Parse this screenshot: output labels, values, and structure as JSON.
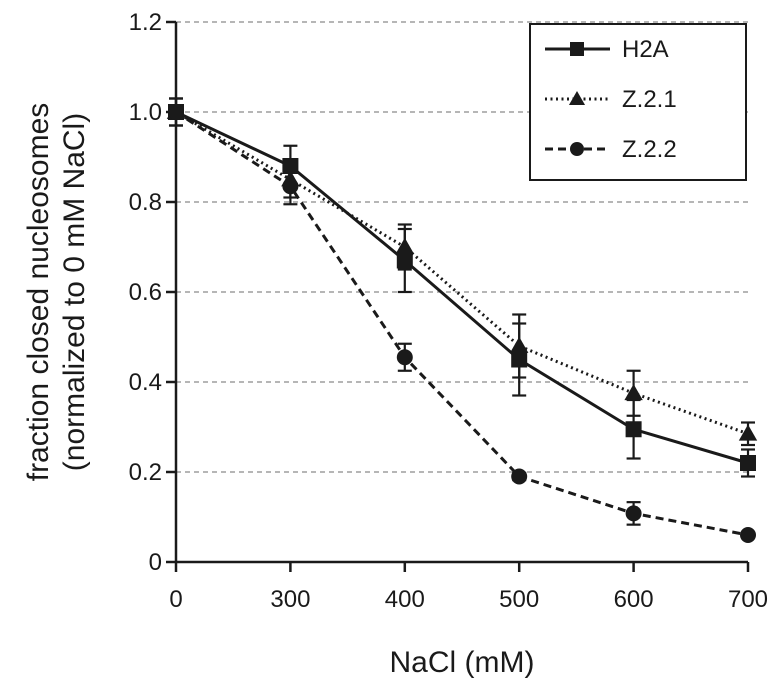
{
  "chart_data": {
    "type": "line",
    "xlabel": "NaCl (mM)",
    "ylabel_line1": "fraction closed nucleosomes",
    "ylabel_line2": "(normalized to 0 mM NaCl)",
    "x_ticks": [
      "0",
      "300",
      "400",
      "500",
      "600",
      "700"
    ],
    "y_ticks": [
      "0",
      "0.2",
      "0.4",
      "0.6",
      "0.8",
      "1.0",
      "1.2"
    ],
    "y_tick_values": [
      0,
      0.2,
      0.4,
      0.6,
      0.8,
      1.0,
      1.2
    ],
    "ylim": [
      0,
      1.2
    ],
    "grid": "horizontal dashed",
    "legend_position": "top-right",
    "series": [
      {
        "name": "H2A",
        "line_style": "solid",
        "marker": "square",
        "y": [
          1.0,
          0.88,
          0.67,
          0.45,
          0.295,
          0.22
        ],
        "err": [
          0.03,
          0.045,
          0.07,
          0.08,
          0.065,
          0.03
        ]
      },
      {
        "name": "Z.2.1",
        "line_style": "dotted",
        "marker": "triangle",
        "y": [
          1.0,
          0.85,
          0.7,
          0.48,
          0.375,
          0.285
        ],
        "err": [
          0.03,
          0.04,
          0.05,
          0.07,
          0.05,
          0.025
        ]
      },
      {
        "name": "Z.2.2",
        "line_style": "dashed",
        "marker": "circle",
        "y": [
          1.0,
          0.835,
          0.455,
          0.19,
          0.108,
          0.06
        ],
        "err": [
          0.03,
          0.04,
          0.03,
          0.008,
          0.025,
          0.005
        ]
      }
    ]
  }
}
